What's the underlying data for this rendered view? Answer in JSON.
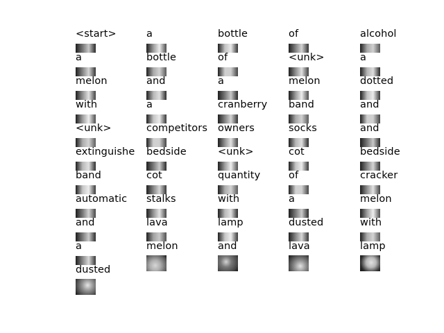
{
  "columns": [
    [
      "<start>",
      "a",
      "melon",
      "with",
      "<unk>",
      "extinguishe",
      "band",
      "automatic",
      "and",
      "a",
      "dusted"
    ],
    [
      "a",
      "bottle",
      "and",
      "a",
      "competitors",
      "bedside",
      "cot",
      "stalks",
      "lava",
      "melon"
    ],
    [
      "bottle",
      "of",
      "a",
      "cranberry",
      "owners",
      "<unk>",
      "quantity",
      "with",
      "lamp",
      "and"
    ],
    [
      "of",
      "<unk>",
      "melon",
      "band",
      "socks",
      "cot",
      "of",
      "a",
      "dusted",
      "lava"
    ],
    [
      "alcohol",
      "a",
      "dotted",
      "and",
      "and",
      "bedside",
      "cracker",
      "melon",
      "with",
      "lamp"
    ]
  ]
}
